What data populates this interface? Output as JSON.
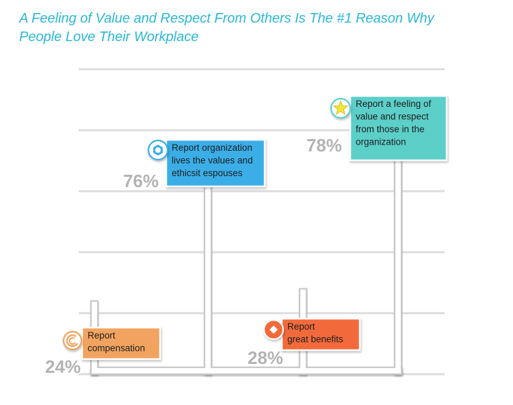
{
  "title_line1": "A Feeling of Value and Respect From Others Is The #1 Reason Why",
  "title_line2": "People Love Their Workplace",
  "colors": {
    "title": "#2ab7d6",
    "compensation": "#f2a35e",
    "benefits": "#f26a3a",
    "values": "#3aaee8",
    "respect": "#5ccfc9",
    "grid": "#dcdcdc",
    "pct_text": "#b3b3b3"
  },
  "chart_data": {
    "type": "bar",
    "title": "A Feeling of Value and Respect From Others Is The #1 Reason Why People Love Their Workplace",
    "categories": [
      "Report compensation",
      "Report organization lives the values and ethicsit espouses",
      "Report great benefits",
      "Report a feeling of value and respect from those in the organization"
    ],
    "values": [
      24,
      76,
      28,
      78
    ],
    "value_labels": [
      "24%",
      "76%",
      "28%",
      "78%"
    ],
    "label_lines": [
      [
        "Report",
        "compensation"
      ],
      [
        "Report organization",
        "lives the values and",
        "ethicsit espouses"
      ],
      [
        "Report",
        "great benefits"
      ],
      [
        "Report a feeling of",
        "value and respect",
        "from those in the",
        "organization"
      ]
    ],
    "icons": [
      "spiral-icon",
      "hexagon-icon",
      "diamond-icon",
      "star-icon"
    ],
    "ylim": [
      0,
      100
    ],
    "grid": true,
    "xlabel": "",
    "ylabel": ""
  }
}
